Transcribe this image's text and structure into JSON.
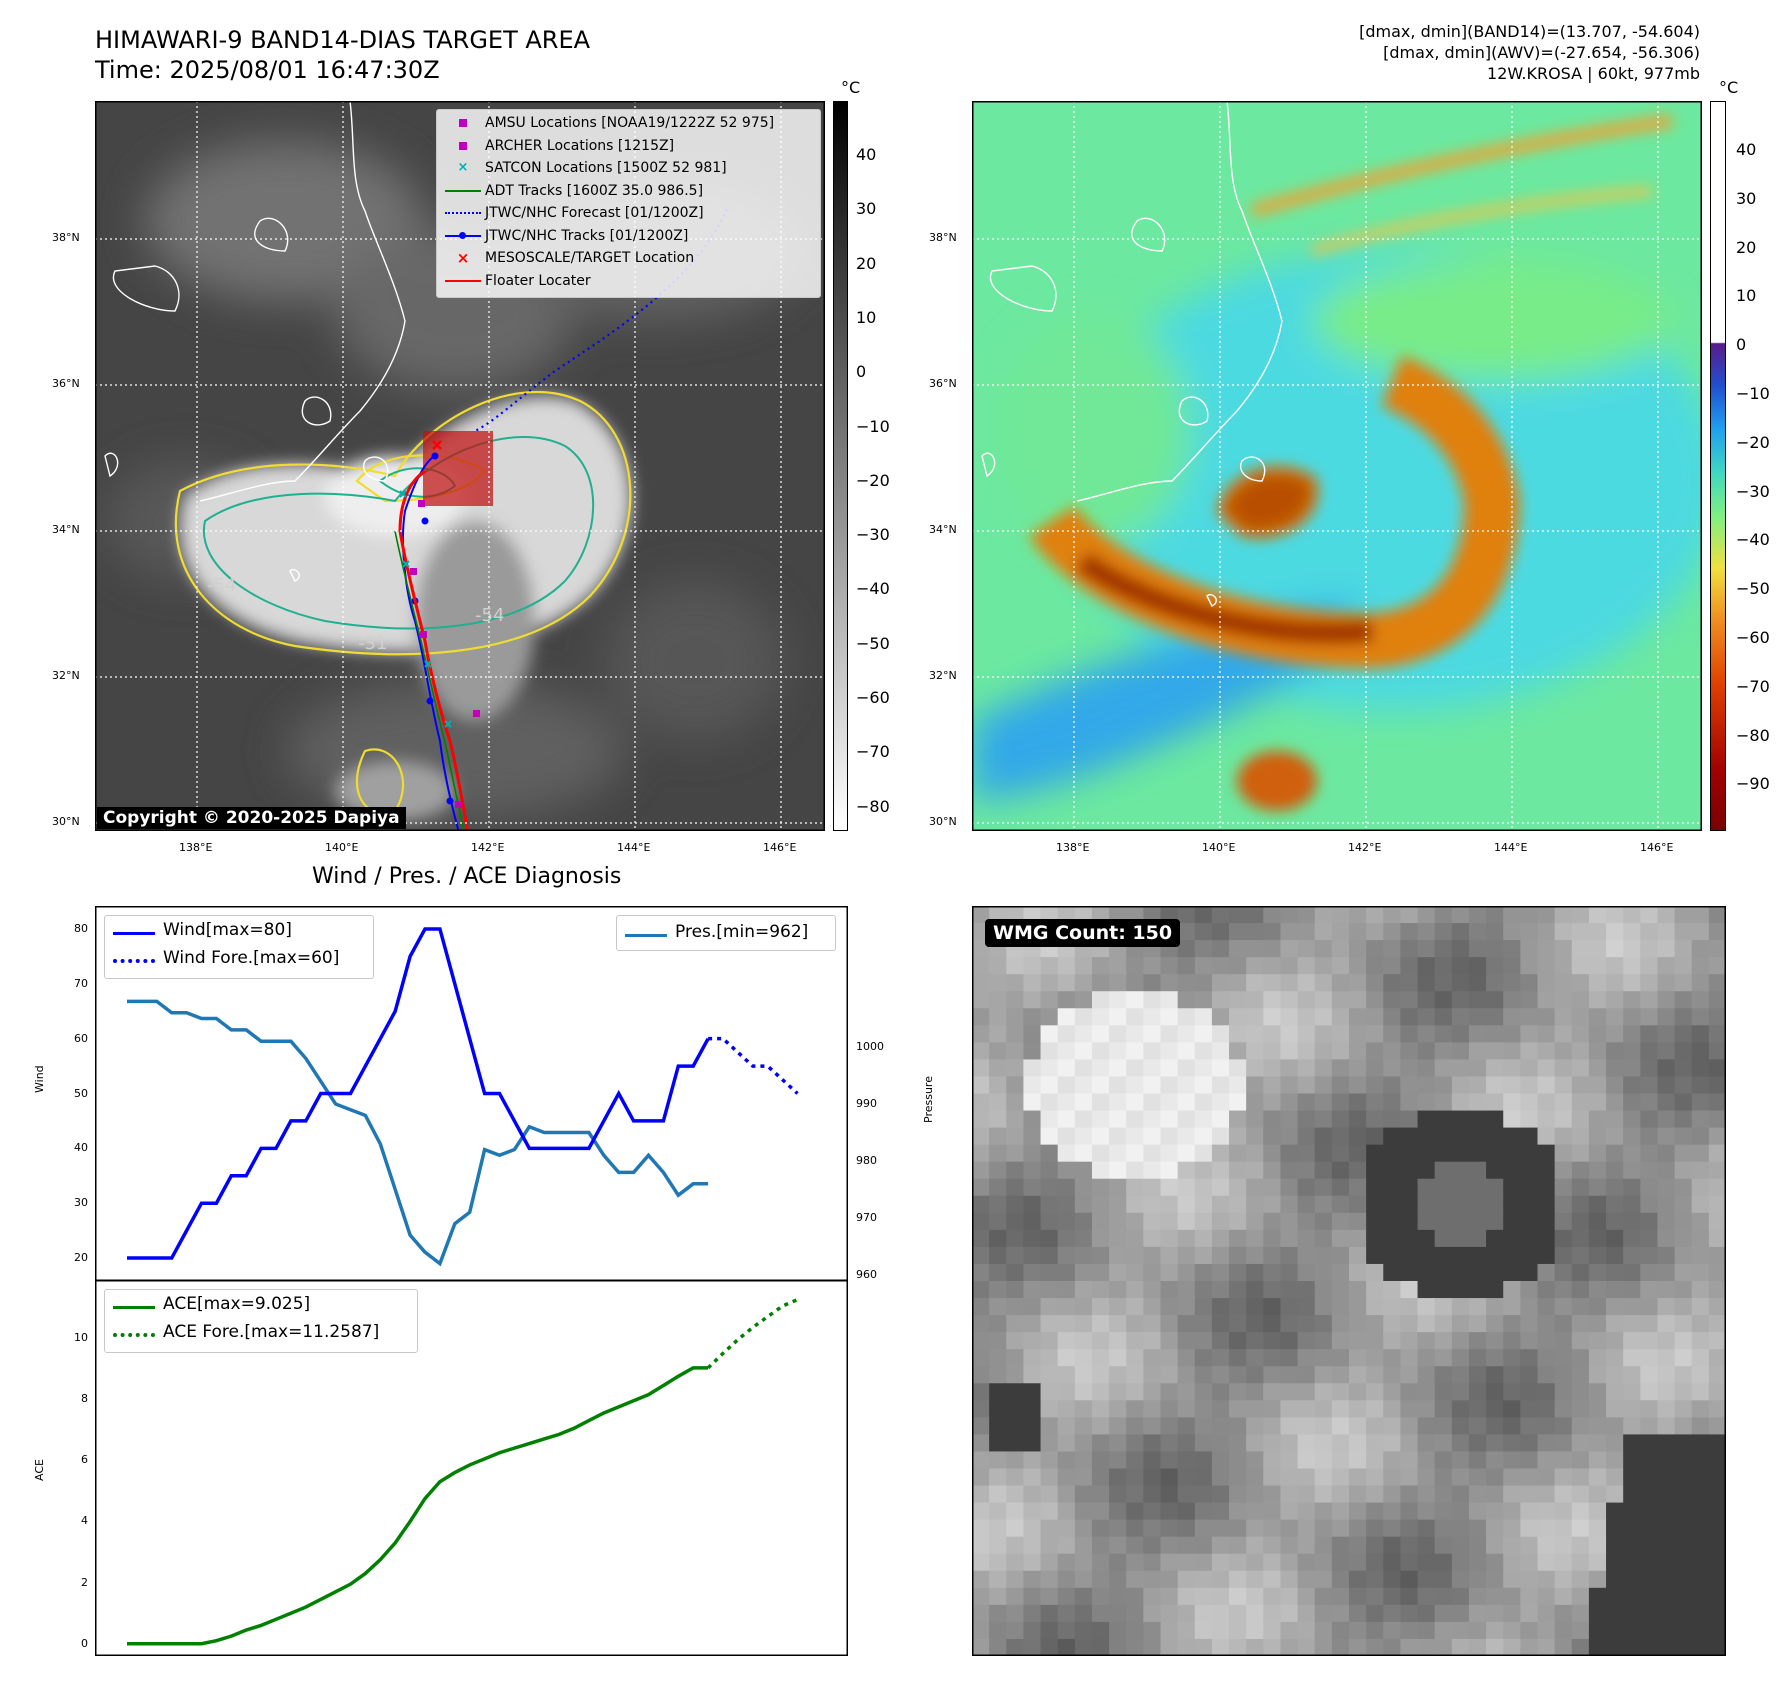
{
  "header": {
    "title_line1": "HIMAWARI-9 BAND14-DIAS TARGET AREA",
    "title_line2": "Time: 2025/08/01 16:47:30Z",
    "info_line1": "[dmax, dmin](BAND14)=(13.707, -54.604)",
    "info_line2": "[dmax, dmin](AWV)=(-27.654, -56.306)",
    "info_line3": "12W.KROSA | 60kt, 977mb"
  },
  "map": {
    "lat_labels": [
      "38°N",
      "36°N",
      "34°N",
      "32°N",
      "30°N"
    ],
    "lon_labels": [
      "138°E",
      "140°E",
      "142°E",
      "144°E",
      "146°E"
    ],
    "contour_labels": [
      "-54",
      "-54",
      "-31"
    ],
    "copyright": "Copyright © 2020-2025 Dapiya",
    "legend": [
      {
        "label": "AMSU Locations [NOAA19/1222Z 52 975]",
        "color": "#c000c0",
        "symbol": "square"
      },
      {
        "label": "ARCHER Locations [1215Z]",
        "color": "#c000c0",
        "symbol": "square"
      },
      {
        "label": "SATCON Locations [1500Z 52 981]",
        "color": "#00b0b0",
        "symbol": "x"
      },
      {
        "label": "ADT Tracks [1600Z 35.0 986.5]",
        "color": "#008000",
        "symbol": "line"
      },
      {
        "label": "JTWC/NHC Forecast [01/1200Z]",
        "color": "#0000ff",
        "symbol": "dotted"
      },
      {
        "label": "JTWC/NHC Tracks [01/1200Z]",
        "color": "#0000ff",
        "symbol": "line-dot"
      },
      {
        "label": "MESOSCALE/TARGET Location",
        "color": "#ff0000",
        "symbol": "x"
      },
      {
        "label": "Floater Locater",
        "color": "#ff0000",
        "symbol": "line"
      }
    ]
  },
  "colorbar_ir": {
    "unit": "°C",
    "ticks": [
      "40",
      "30",
      "20",
      "10",
      "0",
      "−10",
      "−20",
      "−30",
      "−40",
      "−50",
      "−60",
      "−70",
      "−80"
    ]
  },
  "colorbar_wv": {
    "unit": "°C",
    "ticks": [
      "40",
      "30",
      "20",
      "10",
      "0",
      "−10",
      "−20",
      "−30",
      "−40",
      "−50",
      "−60",
      "−70",
      "−80",
      "−90"
    ]
  },
  "diagnosis": {
    "title": "Wind / Pres. / ACE Diagnosis",
    "wind_ylabel": "Wind",
    "pres_ylabel": "Pressure",
    "ace_ylabel": "ACE",
    "wind_ticks": [
      "80",
      "70",
      "60",
      "50",
      "40",
      "30",
      "20"
    ],
    "pres_ticks": [
      "1000",
      "990",
      "980",
      "970",
      "960"
    ],
    "ace_ticks": [
      "10",
      "8",
      "6",
      "4",
      "2",
      "0"
    ],
    "legend_wind": "Wind[max=80]",
    "legend_wind_fore": "Wind Fore.[max=60]",
    "legend_pres": "Pres.[min=962]",
    "legend_ace": "ACE[max=9.025]",
    "legend_ace_fore": "ACE Fore.[max=11.2587]",
    "wmg_label": "WMG Count: 150"
  },
  "chart_data": [
    {
      "type": "line",
      "name": "wind-pressure",
      "x": [
        0,
        1,
        2,
        3,
        4,
        5,
        6,
        7,
        8,
        9,
        10,
        11,
        12,
        13,
        14,
        15,
        16,
        17,
        18,
        19,
        20,
        21,
        22,
        23,
        24,
        25,
        26,
        27,
        28,
        29,
        30,
        31,
        32,
        33,
        34,
        35,
        36,
        37,
        38,
        39
      ],
      "series": [
        {
          "name": "Wind[max=80]",
          "color": "#0000ff",
          "axis": "left",
          "values": [
            20,
            20,
            20,
            20,
            25,
            30,
            30,
            35,
            35,
            40,
            40,
            45,
            45,
            50,
            50,
            50,
            55,
            60,
            65,
            75,
            80,
            80,
            70,
            60,
            50,
            50,
            45,
            40,
            40,
            40,
            40,
            40,
            45,
            50,
            45,
            45,
            45,
            55,
            55,
            60
          ]
        },
        {
          "name": "Wind Fore.[max=60]",
          "color": "#0000ff",
          "axis": "left",
          "style": "dotted",
          "x": [
            39,
            40,
            41,
            42,
            43,
            44,
            45
          ],
          "values": [
            60,
            60,
            57.5,
            55,
            55,
            52.5,
            50
          ]
        },
        {
          "name": "Pres.[min=962]",
          "color": "#1f77b4",
          "axis": "right",
          "values": [
            1008,
            1008,
            1008,
            1006,
            1006,
            1005,
            1005,
            1003,
            1003,
            1001,
            1001,
            1001,
            998,
            994,
            990,
            989,
            988,
            983,
            975,
            967,
            964,
            962,
            969,
            971,
            982,
            981,
            982,
            986,
            985,
            985,
            985,
            985,
            981,
            978,
            978,
            981,
            978,
            974,
            976,
            976
          ]
        }
      ],
      "ylabel_left": "Wind",
      "ylim_left": [
        18,
        82
      ],
      "ylabel_right": "Pressure",
      "ylim_right": [
        960,
        1010
      ]
    },
    {
      "type": "line",
      "name": "ace",
      "x": [
        0,
        1,
        2,
        3,
        4,
        5,
        6,
        7,
        8,
        9,
        10,
        11,
        12,
        13,
        14,
        15,
        16,
        17,
        18,
        19,
        20,
        21,
        22,
        23,
        24,
        25,
        26,
        27,
        28,
        29,
        30,
        31,
        32,
        33,
        34,
        35,
        36,
        37,
        38,
        39
      ],
      "series": [
        {
          "name": "ACE[max=9.025]",
          "color": "#008000",
          "values": [
            0,
            0,
            0,
            0,
            0,
            0,
            0.1,
            0.25,
            0.45,
            0.6,
            0.8,
            1.0,
            1.2,
            1.45,
            1.7,
            1.95,
            2.3,
            2.75,
            3.3,
            4.0,
            4.75,
            5.3,
            5.6,
            5.85,
            6.05,
            6.25,
            6.4,
            6.55,
            6.7,
            6.85,
            7.05,
            7.3,
            7.55,
            7.75,
            7.95,
            8.15,
            8.45,
            8.75,
            9.025,
            9.025
          ]
        },
        {
          "name": "ACE Fore.[max=11.2587]",
          "color": "#008000",
          "style": "dotted",
          "x": [
            39,
            40,
            41,
            42,
            43,
            44,
            45
          ],
          "values": [
            9.025,
            9.5,
            9.95,
            10.35,
            10.7,
            11.05,
            11.2587
          ]
        }
      ],
      "ylabel": "ACE",
      "ylim": [
        -0.4,
        11.9
      ]
    }
  ]
}
